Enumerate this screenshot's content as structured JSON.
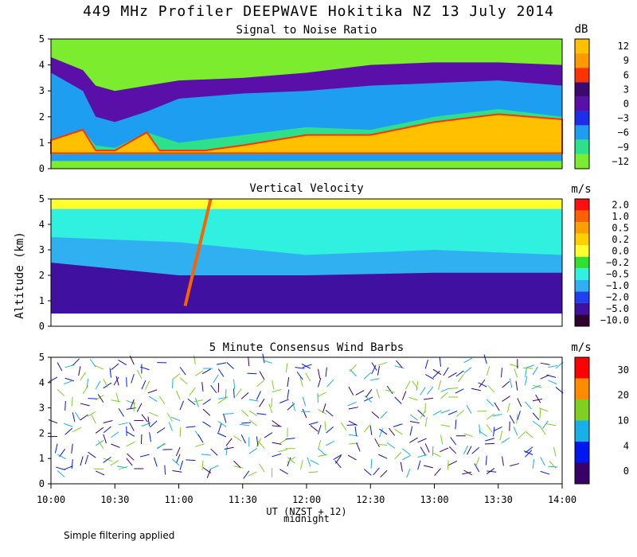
{
  "title": "449 MHz Profiler DEEPWAVE Hokitika NZ 13 July 2014",
  "footer": "Simple filtering applied",
  "chart_data": [
    {
      "type": "heatmap",
      "title": "Signal to Noise Ratio",
      "ylabel": "Altitude (km)",
      "ylim": [
        0,
        5
      ],
      "yticks": [
        "0",
        "1",
        "2",
        "3",
        "4",
        "5"
      ],
      "colorbar_unit": "dB",
      "colorbar_labels": [
        "12",
        "9",
        "6",
        "3",
        "0",
        "−3",
        "−6",
        "−9",
        "−12"
      ],
      "colors": [
        "#FFC000",
        "#FF9900",
        "#FF3300",
        "#3A0A6E",
        "#5A10A8",
        "#1E2EE8",
        "#1E9EF0",
        "#2EE08A",
        "#7BEC2E"
      ],
      "profile": [
        {
          "time": 0.0,
          "band": [
            0.55,
            1.1,
            3.7,
            4.3
          ]
        },
        {
          "time": 0.25,
          "band": [
            0.55,
            1.5,
            3.0,
            3.8
          ]
        },
        {
          "time": 0.35,
          "band": [
            0.55,
            0.9,
            2.0,
            3.2
          ]
        },
        {
          "time": 0.5,
          "band": [
            0.55,
            0.8,
            1.8,
            3.0
          ]
        },
        {
          "time": 0.75,
          "band": [
            0.55,
            1.4,
            2.2,
            3.2
          ]
        },
        {
          "time": 1.0,
          "band": [
            0.55,
            1.0,
            2.7,
            3.4
          ]
        },
        {
          "time": 1.5,
          "band": [
            0.55,
            1.3,
            2.9,
            3.5
          ]
        },
        {
          "time": 2.0,
          "band": [
            0.55,
            1.6,
            3.0,
            3.7
          ]
        },
        {
          "time": 2.5,
          "band": [
            0.55,
            1.5,
            3.2,
            4.0
          ]
        },
        {
          "time": 3.0,
          "band": [
            0.55,
            2.0,
            3.3,
            4.1
          ]
        },
        {
          "time": 3.5,
          "band": [
            0.55,
            2.3,
            3.4,
            4.1
          ]
        },
        {
          "time": 4.0,
          "band": [
            0.55,
            2.0,
            3.2,
            4.0
          ]
        }
      ]
    },
    {
      "type": "heatmap",
      "title": "Vertical Velocity",
      "ylim": [
        0,
        5
      ],
      "yticks": [
        "0",
        "1",
        "2",
        "3",
        "4",
        "5"
      ],
      "colorbar_unit": "m/s",
      "colorbar_labels": [
        "2.0",
        "1.0",
        "0.5",
        "0.2",
        "0.0",
        "−0.2",
        "−0.5",
        "−1.0",
        "−2.0",
        "−5.0",
        "−10.0"
      ],
      "colors": [
        "#FF1010",
        "#FF6000",
        "#FFA000",
        "#FFD000",
        "#FFFF30",
        "#30E030",
        "#30F0E0",
        "#30B0F0",
        "#2040F0",
        "#4010A0",
        "#300030"
      ],
      "layers": [
        {
          "time": 0.0,
          "levels": [
            0.5,
            2.5,
            3.5,
            5.0
          ]
        },
        {
          "time": 1.0,
          "levels": [
            0.5,
            2.0,
            3.3,
            5.0
          ]
        },
        {
          "time": 2.0,
          "levels": [
            0.5,
            2.0,
            2.8,
            5.0
          ]
        },
        {
          "time": 3.0,
          "levels": [
            0.5,
            2.1,
            3.0,
            5.0
          ]
        },
        {
          "time": 4.0,
          "levels": [
            0.5,
            2.1,
            2.8,
            5.0
          ]
        }
      ]
    },
    {
      "type": "scatter",
      "title": "5 Minute Consensus Wind Barbs",
      "ylim": [
        0,
        5
      ],
      "yticks": [
        "0",
        "1",
        "2",
        "3",
        "4",
        "5"
      ],
      "xticks": [
        "10:00",
        "10:30",
        "11:00",
        "11:30",
        "12:00",
        "12:30",
        "13:00",
        "13:30",
        "14:00"
      ],
      "xlabel": "UT  (NZST + 12)",
      "x_annotation": "midnight",
      "colorbar_unit": "m/s",
      "colorbar_labels": [
        "30",
        "20",
        "10",
        "4",
        "0"
      ],
      "colors": [
        "#FF0000",
        "#FF8C00",
        "#7FD020",
        "#18B0E8",
        "#0018F0",
        "#3A006A"
      ],
      "barb_samples": [
        {
          "t": 0.1,
          "alt": 0.9,
          "speed": 8
        },
        {
          "t": 0.2,
          "alt": 3.5,
          "speed": 3
        },
        {
          "t": 0.5,
          "alt": 4.0,
          "speed": 11
        },
        {
          "t": 0.8,
          "alt": 1.5,
          "speed": 12
        },
        {
          "t": 1.2,
          "alt": 4.5,
          "speed": 12
        },
        {
          "t": 1.6,
          "alt": 3.4,
          "speed": 24
        },
        {
          "t": 2.0,
          "alt": 2.5,
          "speed": 2
        },
        {
          "t": 2.5,
          "alt": 4.0,
          "speed": 9
        },
        {
          "t": 3.0,
          "alt": 1.0,
          "speed": 6
        },
        {
          "t": 3.4,
          "alt": 4.6,
          "speed": 14
        },
        {
          "t": 3.8,
          "alt": 1.2,
          "speed": 7
        }
      ]
    }
  ]
}
